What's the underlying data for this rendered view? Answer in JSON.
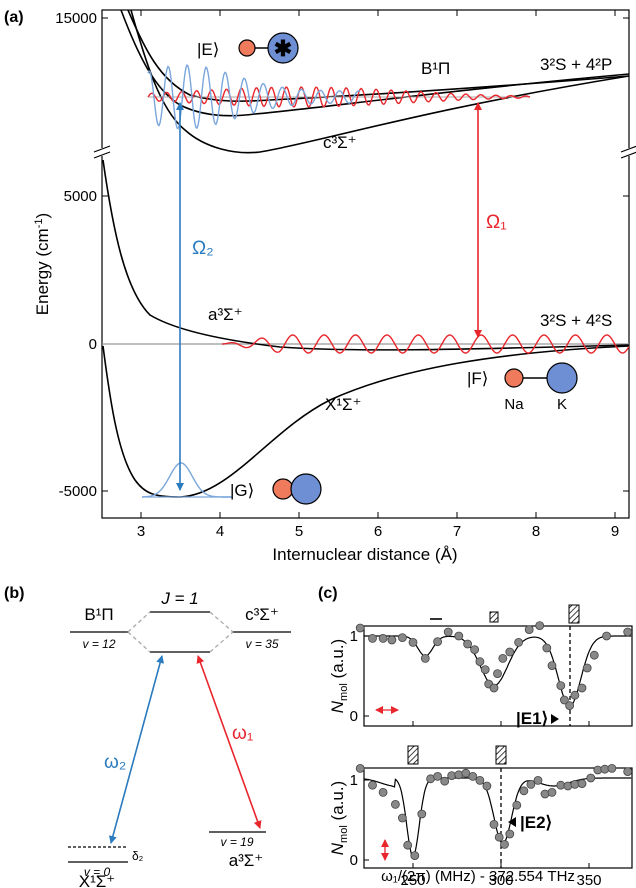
{
  "panel_a": {
    "label": "(a)",
    "y_axis_label": "Energy (cm",
    "y_axis_label_sup": "-1",
    "y_axis_label_end": ")",
    "x_axis_label": "Internuclear distance (Å)",
    "y_ticks": [
      "15000",
      "5000",
      "0",
      "-5000"
    ],
    "x_ticks": [
      "3",
      "4",
      "5",
      "6",
      "7",
      "8",
      "9"
    ],
    "state_E": "|E⟩",
    "state_F": "|F⟩",
    "state_G": "|G⟩",
    "atom_na": "Na",
    "atom_k": "K",
    "asym_upper": "3²S + 4²P",
    "asym_lower": "3²S + 4²S",
    "omega_1": "Ω₁",
    "omega_2": "Ω₂",
    "curves": [
      "B¹Π",
      "c³Σ⁺",
      "a³Σ⁺",
      "X¹Σ⁺"
    ],
    "colors": {
      "red": "#e8262c",
      "blue": "#2b7bbf",
      "na": "#ef7b5c",
      "k": "#6e8fd4",
      "light_blue": "#7aa6dc"
    }
  },
  "panel_b": {
    "label": "(b)",
    "j_label": "J = 1",
    "b_state": "B¹Π",
    "b_v": "v = 12",
    "c_state": "c³Σ⁺",
    "c_v": "v = 35",
    "a_state": "a³Σ⁺",
    "a_v": "v = 19",
    "x_state": "X¹Σ⁺",
    "x_v": "v = 0",
    "delta": "δ₂",
    "omega_1": "ω₁",
    "omega_2": "ω₂"
  },
  "panel_c": {
    "label": "(c)",
    "y_axis_label": "N",
    "y_axis_sub": "mol",
    "y_axis_unit": "(a.u.)",
    "x_axis_label": "ω₁/(2π) (MHz) - 372.554 THz",
    "y_ticks": [
      "1",
      "0"
    ],
    "x_ticks": [
      "250",
      "300",
      "350"
    ],
    "e1_label": "|E1⟩",
    "e2_label": "|E2⟩",
    "chart_data": [
      {
        "type": "scatter",
        "name": "top",
        "x": [
          220,
          227,
          233,
          238,
          244,
          250,
          257,
          264,
          270,
          276,
          281,
          285,
          288,
          291,
          293,
          296,
          298,
          301,
          305,
          310,
          316,
          322,
          326,
          329,
          334,
          336,
          339,
          342,
          346,
          349,
          353,
          360,
          372
        ],
        "y": [
          1.1,
          0.97,
          0.97,
          0.95,
          0.98,
          0.92,
          0.72,
          0.93,
          1.05,
          1.0,
          0.9,
          0.83,
          0.68,
          0.58,
          0.4,
          0.35,
          0.53,
          0.72,
          0.8,
          0.92,
          1.08,
          1.13,
          0.85,
          0.63,
          0.38,
          0.2,
          0.13,
          0.26,
          0.35,
          0.6,
          0.76,
          1.0,
          1.05
        ],
        "ylim": [
          -0.05,
          1.25
        ],
        "xlim": [
          218,
          378
        ]
      },
      {
        "type": "scatter",
        "name": "bottom",
        "x": [
          220,
          227,
          233,
          240,
          244,
          247,
          251,
          255,
          260,
          264,
          268,
          272,
          276,
          280,
          284,
          288,
          292,
          296,
          299,
          302,
          305,
          309,
          313,
          317,
          321,
          325,
          329,
          334,
          338,
          342,
          346,
          351,
          355,
          359,
          363,
          372
        ],
        "y": [
          1.12,
          0.91,
          0.82,
          0.67,
          0.5,
          0.16,
          0.03,
          0.55,
          0.99,
          1.02,
          0.96,
          1.03,
          1.04,
          1.06,
          1.02,
          0.97,
          0.9,
          0.42,
          0.26,
          0.17,
          0.3,
          0.66,
          0.84,
          0.92,
          0.97,
          0.8,
          0.82,
          0.91,
          0.9,
          0.92,
          0.93,
          1.0,
          1.1,
          1.11,
          1.12,
          1.08
        ],
        "ylim": [
          -0.05,
          1.25
        ],
        "xlim": [
          218,
          378
        ]
      }
    ]
  }
}
